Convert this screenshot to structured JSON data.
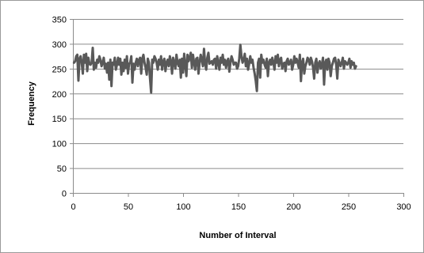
{
  "chart_data": {
    "type": "line",
    "title": "",
    "xlabel": "Number of Interval",
    "ylabel": "Frequency",
    "xlim": [
      0,
      300
    ],
    "ylim": [
      0,
      350
    ],
    "x_ticks": [
      0,
      50,
      100,
      150,
      200,
      250,
      300
    ],
    "y_ticks": [
      0,
      50,
      100,
      150,
      200,
      250,
      300,
      350
    ],
    "grid": "horizontal major gridlines",
    "legend": "none",
    "line_color": "#595959",
    "series": [
      {
        "x_start": 1,
        "x_step": 1,
        "values": [
          262,
          265,
          275,
          278,
          226,
          270,
          275,
          262,
          240,
          278,
          262,
          280,
          245,
          272,
          260,
          258,
          262,
          292,
          248,
          262,
          252,
          268,
          262,
          275,
          268,
          255,
          262,
          272,
          250,
          260,
          242,
          262,
          228,
          268,
          215,
          262,
          258,
          272,
          248,
          258,
          272,
          258,
          270,
          238,
          262,
          245,
          268,
          252,
          275,
          240,
          260,
          262,
          275,
          222,
          260,
          248,
          262,
          270,
          255,
          268,
          272,
          240,
          270,
          278,
          262,
          252,
          238,
          270,
          262,
          230,
          202,
          268,
          262,
          275,
          270,
          262,
          248,
          268,
          258,
          275,
          248,
          265,
          270,
          245,
          262,
          268,
          255,
          275,
          265,
          240,
          272,
          262,
          250,
          278,
          262,
          255,
          268,
          232,
          270,
          242,
          280,
          258,
          235,
          278,
          265,
          272,
          282,
          252,
          278,
          262,
          248,
          270,
          272,
          240,
          262,
          278,
          268,
          255,
          290,
          260,
          248,
          272,
          282,
          260,
          262,
          265,
          258,
          268,
          270,
          250,
          275,
          262,
          248,
          272,
          262,
          278,
          258,
          268,
          252,
          265,
          270,
          244,
          262,
          275,
          268,
          258,
          262,
          262,
          250,
          255,
          270,
          298,
          275,
          262,
          268,
          280,
          255,
          270,
          248,
          260,
          275,
          262,
          268,
          252,
          240,
          225,
          205,
          262,
          270,
          232,
          278,
          262,
          268,
          258,
          252,
          270,
          235,
          262,
          268,
          258,
          272,
          262,
          248,
          275,
          262,
          278,
          255,
          268,
          272,
          250,
          260,
          262,
          245,
          265,
          270,
          258,
          262,
          268,
          248,
          258,
          275,
          262,
          270,
          262,
          252,
          278,
          225,
          262,
          270,
          240,
          255,
          262,
          272,
          268,
          258,
          272,
          265,
          252,
          230,
          262,
          270,
          242,
          260,
          265,
          250,
          258,
          272,
          218,
          262,
          268,
          248,
          270,
          262,
          235,
          255,
          262,
          270,
          272,
          258,
          230,
          268,
          262,
          255,
          262,
          272,
          250,
          265,
          262,
          258,
          262,
          270,
          252,
          265,
          258,
          262,
          250,
          255
        ]
      }
    ]
  }
}
